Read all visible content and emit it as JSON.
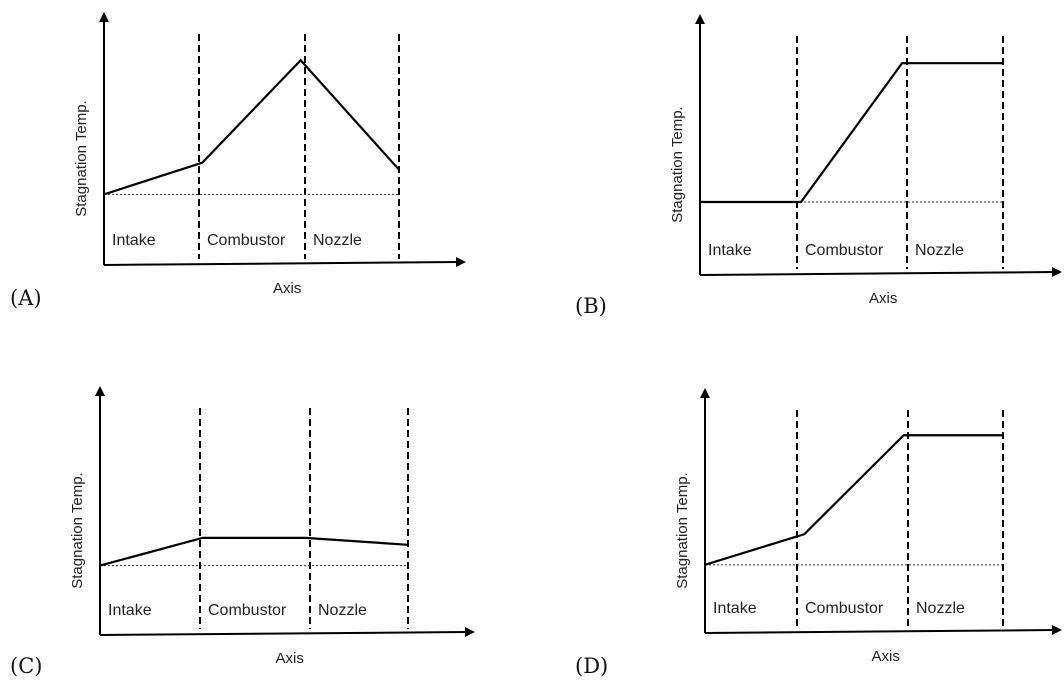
{
  "chart_data": [
    {
      "type": "line",
      "panel_label": "(A)",
      "xlabel": "Axis",
      "ylabel": "Stagnation Temp.",
      "regions": [
        "Intake",
        "Combustor",
        "Nozzle"
      ],
      "x": [
        0,
        1,
        2,
        3
      ],
      "values": [
        1.0,
        1.45,
        2.9,
        1.35
      ],
      "baseline": 1.0,
      "ylim": [
        0,
        3.3
      ],
      "grid": false
    },
    {
      "type": "line",
      "panel_label": "(B)",
      "xlabel": "Axis",
      "ylabel": "Stagnation Temp.",
      "regions": [
        "Intake",
        "Combustor",
        "Nozzle"
      ],
      "x": [
        0,
        1,
        2,
        3
      ],
      "values": [
        1.0,
        1.0,
        2.9,
        2.9
      ],
      "baseline": 1.0,
      "ylim": [
        0,
        3.3
      ],
      "grid": false
    },
    {
      "type": "line",
      "panel_label": "(C)",
      "xlabel": "Axis",
      "ylabel": "Stagnation Temp.",
      "regions": [
        "Intake",
        "Combustor",
        "Nozzle"
      ],
      "x": [
        0,
        1,
        2,
        3
      ],
      "values": [
        1.0,
        1.4,
        1.4,
        1.3
      ],
      "baseline": 1.0,
      "ylim": [
        0,
        3.3
      ],
      "grid": false
    },
    {
      "type": "line",
      "panel_label": "(D)",
      "xlabel": "Axis",
      "ylabel": "Stagnation Temp.",
      "regions": [
        "Intake",
        "Combustor",
        "Nozzle"
      ],
      "x": [
        0,
        1,
        2,
        3
      ],
      "values": [
        1.0,
        1.45,
        2.9,
        2.9
      ],
      "baseline": 1.0,
      "ylim": [
        0,
        3.3
      ],
      "grid": false
    }
  ]
}
